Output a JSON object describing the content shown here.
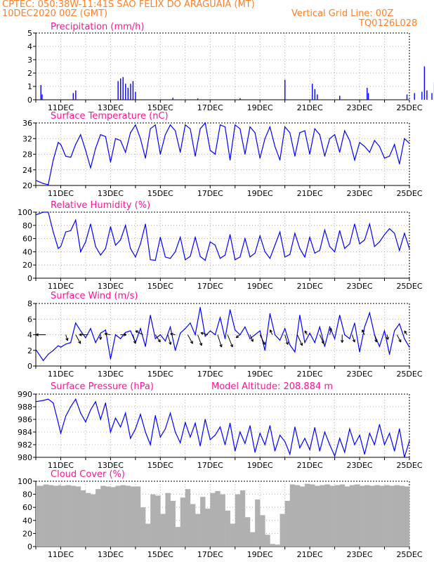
{
  "header": {
    "station": "CPTEC:   050:38W-11:41S   SAO FELIX DO ARAGUAIA (MT)",
    "init": "10DEC2020 00Z (GMT)",
    "grid_note": "Vertical Grid Line: 00Z",
    "code": "TQ0126L028"
  },
  "colors": {
    "header": "#ff7f24",
    "title": "#ff1493",
    "line": "#0000ff",
    "cloud": "#b0b0b0",
    "arrow": "#000000"
  },
  "chart_data": [
    {
      "type": "bar",
      "title": "Precipitation (mm/h)",
      "ylim": [
        0,
        5
      ],
      "yticks": [
        0,
        1,
        2,
        3,
        4,
        5
      ],
      "xlabels": [
        "11DEC",
        "13DEC",
        "15DEC",
        "17DEC",
        "19DEC",
        "21DEC",
        "23DEC",
        "25DEC"
      ],
      "grid": true,
      "bars": [
        [
          0.2,
          1.1
        ],
        [
          0.25,
          0.4
        ],
        [
          1.5,
          0.5
        ],
        [
          1.6,
          0.7
        ],
        [
          3.3,
          1.4
        ],
        [
          3.4,
          1.6
        ],
        [
          3.5,
          1.7
        ],
        [
          3.6,
          1.2
        ],
        [
          3.7,
          0.9
        ],
        [
          3.8,
          1.2
        ],
        [
          3.9,
          1.4
        ],
        [
          4.0,
          0.6
        ],
        [
          5.5,
          0.15
        ],
        [
          6.5,
          0.1
        ],
        [
          8.2,
          0.12
        ],
        [
          10.0,
          1.5
        ],
        [
          11.1,
          1.2
        ],
        [
          11.2,
          0.8
        ],
        [
          11.3,
          0.4
        ],
        [
          12.2,
          0.3
        ],
        [
          13.3,
          0.9
        ],
        [
          13.35,
          0.5
        ],
        [
          14.9,
          0.4
        ],
        [
          15.2,
          0.5
        ],
        [
          15.5,
          0.6
        ],
        [
          15.6,
          2.5
        ],
        [
          15.7,
          0.7
        ],
        [
          15.9,
          0.5
        ],
        [
          16.0,
          1.3
        ],
        [
          16.8,
          0.8
        ],
        [
          16.9,
          2.6
        ],
        [
          17.0,
          2.0
        ],
        [
          17.1,
          1.2
        ],
        [
          17.3,
          2.1
        ],
        [
          17.4,
          2.0
        ],
        [
          17.5,
          2.1
        ],
        [
          17.6,
          1.5
        ],
        [
          17.7,
          2.1
        ]
      ]
    },
    {
      "type": "line",
      "title": "Surface Temperature (nC)",
      "ylim": [
        20,
        36
      ],
      "yticks": [
        20,
        24,
        28,
        32,
        36
      ],
      "xlabels": [
        "11DEC",
        "13DEC",
        "15DEC",
        "17DEC",
        "19DEC",
        "21DEC",
        "23DEC",
        "25DEC"
      ],
      "grid": true,
      "x": [
        0.0,
        0.3,
        0.5,
        0.7,
        0.9,
        1.0,
        1.2,
        1.4,
        1.6,
        1.8,
        2.0,
        2.2,
        2.4,
        2.6,
        2.8,
        3.0,
        3.2,
        3.4,
        3.6,
        3.8,
        4.0,
        4.2,
        4.4,
        4.6,
        4.8,
        5.0,
        5.2,
        5.4,
        5.6,
        5.8,
        6.0,
        6.2,
        6.4,
        6.6,
        6.8,
        7.0,
        7.2,
        7.4,
        7.6,
        7.8,
        8.0,
        8.2,
        8.4,
        8.6,
        8.8,
        9.0,
        9.2,
        9.4,
        9.6,
        9.8,
        10.0,
        10.2,
        10.4,
        10.6,
        10.8,
        11.0,
        11.2,
        11.4,
        11.6,
        11.8,
        12.0,
        12.2,
        12.4,
        12.6,
        12.8,
        13.0,
        13.2,
        13.4,
        13.6,
        13.8,
        14.0,
        14.2,
        14.4,
        14.6,
        14.8,
        15.0
      ],
      "values": [
        21.3,
        20.5,
        20.2,
        26.5,
        31.0,
        30.5,
        27.5,
        27.2,
        30.5,
        33.0,
        29.0,
        24.5,
        29.5,
        33.0,
        32.5,
        26.0,
        32.0,
        31.5,
        28.5,
        33.5,
        35.5,
        32.0,
        27.0,
        34.5,
        35.5,
        28.0,
        33.0,
        35.5,
        34.0,
        28.5,
        35.5,
        34.5,
        27.5,
        34.5,
        36.0,
        29.0,
        28.0,
        35.5,
        35.0,
        26.5,
        35.5,
        34.5,
        28.0,
        35.0,
        33.5,
        27.0,
        32.0,
        35.0,
        30.0,
        26.5,
        35.0,
        33.5,
        27.5,
        33.5,
        34.0,
        28.0,
        34.5,
        33.0,
        27.5,
        32.0,
        33.0,
        28.5,
        34.0,
        31.5,
        26.5,
        31.0,
        30.0,
        28.5,
        31.5,
        30.0,
        27.0,
        27.5,
        30.5,
        25.5,
        32.0,
        30.8
      ]
    },
    {
      "type": "line",
      "title": "Relative Humidity (%)",
      "ylim": [
        0,
        100
      ],
      "yticks": [
        0,
        20,
        40,
        60,
        80,
        100
      ],
      "xlabels": [
        "11DEC",
        "13DEC",
        "15DEC",
        "17DEC",
        "19DEC",
        "21DEC",
        "23DEC",
        "25DEC"
      ],
      "grid": true,
      "x": [
        0.0,
        0.3,
        0.5,
        0.7,
        0.9,
        1.0,
        1.2,
        1.4,
        1.6,
        1.8,
        2.0,
        2.2,
        2.4,
        2.6,
        2.8,
        3.0,
        3.2,
        3.4,
        3.6,
        3.8,
        4.0,
        4.2,
        4.4,
        4.6,
        4.8,
        5.0,
        5.2,
        5.4,
        5.6,
        5.8,
        6.0,
        6.2,
        6.4,
        6.6,
        6.8,
        7.0,
        7.2,
        7.4,
        7.6,
        7.8,
        8.0,
        8.2,
        8.4,
        8.6,
        8.8,
        9.0,
        9.2,
        9.4,
        9.6,
        9.8,
        10.0,
        10.2,
        10.4,
        10.6,
        10.8,
        11.0,
        11.2,
        11.4,
        11.6,
        11.8,
        12.0,
        12.2,
        12.4,
        12.6,
        12.8,
        13.0,
        13.2,
        13.4,
        13.6,
        13.8,
        14.0,
        14.2,
        14.4,
        14.6,
        14.8,
        15.0
      ],
      "values": [
        96,
        100,
        100,
        70,
        45,
        48,
        70,
        72,
        88,
        40,
        55,
        82,
        48,
        35,
        45,
        78,
        50,
        58,
        80,
        45,
        32,
        52,
        82,
        28,
        27,
        62,
        32,
        30,
        40,
        62,
        28,
        33,
        62,
        33,
        27,
        55,
        50,
        30,
        35,
        66,
        28,
        32,
        60,
        32,
        38,
        64,
        40,
        30,
        50,
        70,
        32,
        36,
        68,
        45,
        32,
        62,
        38,
        42,
        73,
        48,
        40,
        72,
        45,
        52,
        82,
        52,
        58,
        82,
        48,
        55,
        66,
        75,
        68,
        42,
        68,
        45
      ]
    },
    {
      "type": "line",
      "title": "Surface Wind (m/s)",
      "ylim": [
        0,
        8
      ],
      "yticks": [
        0,
        2,
        4,
        6,
        8
      ],
      "xlabels": [
        "11DEC",
        "13DEC",
        "15DEC",
        "17DEC",
        "19DEC",
        "21DEC",
        "23DEC",
        "25DEC"
      ],
      "grid": true,
      "x": [
        0.0,
        0.3,
        0.5,
        0.7,
        0.9,
        1.0,
        1.2,
        1.4,
        1.6,
        1.8,
        2.0,
        2.2,
        2.4,
        2.6,
        2.8,
        3.0,
        3.2,
        3.4,
        3.6,
        3.8,
        4.0,
        4.2,
        4.4,
        4.6,
        4.8,
        5.0,
        5.2,
        5.4,
        5.6,
        5.8,
        6.0,
        6.2,
        6.4,
        6.6,
        6.8,
        7.0,
        7.2,
        7.4,
        7.6,
        7.8,
        8.0,
        8.2,
        8.4,
        8.6,
        8.8,
        9.0,
        9.2,
        9.4,
        9.6,
        9.8,
        10.0,
        10.2,
        10.4,
        10.6,
        10.8,
        11.0,
        11.2,
        11.4,
        11.6,
        11.8,
        12.0,
        12.2,
        12.4,
        12.6,
        12.8,
        13.0,
        13.2,
        13.4,
        13.6,
        13.8,
        14.0,
        14.2,
        14.4,
        14.6,
        14.8,
        15.0
      ],
      "values": [
        2.1,
        0.7,
        1.5,
        2.0,
        2.6,
        2.4,
        2.8,
        3.0,
        5.5,
        4.5,
        3.6,
        4.8,
        3.0,
        4.2,
        4.6,
        0.9,
        4.0,
        3.5,
        4.3,
        4.5,
        3.0,
        4.8,
        2.5,
        6.5,
        3.5,
        4.0,
        3.2,
        5.0,
        2.0,
        4.2,
        4.8,
        5.5,
        4.0,
        7.5,
        3.8,
        4.5,
        4.0,
        6.2,
        3.5,
        7.2,
        4.6,
        4.0,
        5.0,
        3.5,
        4.0,
        4.5,
        2.0,
        6.7,
        4.0,
        3.3,
        4.8,
        2.7,
        1.8,
        6.5,
        3.0,
        4.2,
        3.0,
        5.0,
        2.5,
        5.0,
        3.5,
        6.5,
        4.0,
        3.5,
        5.5,
        1.8,
        5.0,
        6.8,
        4.0,
        2.5,
        4.5,
        1.5,
        4.5,
        5.4,
        3.5,
        2.4
      ]
    },
    {
      "type": "line",
      "title": "Surface Pressure (hPa)",
      "subtitle": "Model Altitude: 208.884 m",
      "ylim": [
        980,
        990
      ],
      "yticks": [
        980,
        982,
        984,
        986,
        988,
        990
      ],
      "xlabels": [
        "11DEC",
        "13DEC",
        "15DEC",
        "17DEC",
        "19DEC",
        "21DEC",
        "23DEC",
        "25DEC"
      ],
      "grid": true,
      "x": [
        0.0,
        0.3,
        0.5,
        0.7,
        0.9,
        1.0,
        1.2,
        1.4,
        1.6,
        1.8,
        2.0,
        2.2,
        2.4,
        2.6,
        2.8,
        3.0,
        3.2,
        3.4,
        3.6,
        3.8,
        4.0,
        4.2,
        4.4,
        4.6,
        4.8,
        5.0,
        5.2,
        5.4,
        5.6,
        5.8,
        6.0,
        6.2,
        6.4,
        6.6,
        6.8,
        7.0,
        7.2,
        7.4,
        7.6,
        7.8,
        8.0,
        8.2,
        8.4,
        8.6,
        8.8,
        9.0,
        9.2,
        9.4,
        9.6,
        9.8,
        10.0,
        10.2,
        10.4,
        10.6,
        10.8,
        11.0,
        11.2,
        11.4,
        11.6,
        11.8,
        12.0,
        12.2,
        12.4,
        12.6,
        12.8,
        13.0,
        13.2,
        13.4,
        13.6,
        13.8,
        14.0,
        14.2,
        14.4,
        14.6,
        14.8,
        15.0
      ],
      "values": [
        988.8,
        989.0,
        989.2,
        988.6,
        985.5,
        983.8,
        986.5,
        988.0,
        989.2,
        987.0,
        985.6,
        987.5,
        988.8,
        986.0,
        988.6,
        984.0,
        986.2,
        984.8,
        987.0,
        983.0,
        984.5,
        986.8,
        984.0,
        982.0,
        986.6,
        983.2,
        984.5,
        987.0,
        984.0,
        982.3,
        985.5,
        983.2,
        985.4,
        981.8,
        986.0,
        982.8,
        983.5,
        984.8,
        982.0,
        985.4,
        981.0,
        984.0,
        982.2,
        985.0,
        980.8,
        983.8,
        982.0,
        985.0,
        981.0,
        983.5,
        982.5,
        980.5,
        984.8,
        981.5,
        983.0,
        981.2,
        984.7,
        981.0,
        984.0,
        982.0,
        980.2,
        983.0,
        980.8,
        984.5,
        982.0,
        983.5,
        980.5,
        983.8,
        982.0,
        985.2,
        982.0,
        983.8,
        981.0,
        984.5,
        980.0,
        982.6
      ]
    },
    {
      "type": "bar",
      "title": "Cloud Cover (%)",
      "ylim": [
        0,
        100
      ],
      "yticks": [
        0,
        20,
        40,
        60,
        80,
        100
      ],
      "xlabels": [
        "11DEC",
        "13DEC",
        "15DEC",
        "17DEC",
        "19DEC",
        "21DEC",
        "23DEC",
        "25DEC"
      ],
      "grid": true,
      "x": [
        0.0,
        0.3,
        0.5,
        0.7,
        0.9,
        1.0,
        1.2,
        1.4,
        1.6,
        1.8,
        2.0,
        2.2,
        2.4,
        2.6,
        2.8,
        3.0,
        3.2,
        3.4,
        3.6,
        3.8,
        4.0,
        4.2,
        4.4,
        4.6,
        4.8,
        5.0,
        5.2,
        5.4,
        5.6,
        5.8,
        6.0,
        6.2,
        6.4,
        6.6,
        6.8,
        7.0,
        7.2,
        7.4,
        7.6,
        7.8,
        8.0,
        8.2,
        8.4,
        8.6,
        8.8,
        9.0,
        9.2,
        9.4,
        9.6,
        9.8,
        10.0,
        10.2,
        10.4,
        10.6,
        10.8,
        11.0,
        11.2,
        11.4,
        11.6,
        11.8,
        12.0,
        12.2,
        12.4,
        12.6,
        12.8,
        13.0,
        13.2,
        13.4,
        13.6,
        13.8,
        14.0,
        14.2,
        14.4,
        14.6,
        14.8,
        15.0
      ],
      "values": [
        93,
        95,
        94,
        93,
        94,
        93,
        94,
        93,
        92,
        86,
        82,
        80,
        88,
        93,
        92,
        91,
        93,
        94,
        93,
        92,
        92,
        60,
        35,
        80,
        78,
        50,
        82,
        70,
        30,
        75,
        88,
        65,
        50,
        76,
        58,
        82,
        85,
        80,
        55,
        35,
        80,
        86,
        45,
        22,
        72,
        48,
        18,
        4,
        3,
        50,
        70,
        95,
        94,
        92,
        96,
        95,
        93,
        94,
        95,
        93,
        94,
        95,
        92,
        94,
        95,
        93,
        94,
        93,
        94,
        93,
        94,
        93,
        94,
        93,
        92,
        86
      ]
    },
    {
      "type": "scatter",
      "title": "Surface Wind direction",
      "arrows_uv": [
        [
          0.4,
          -2.0,
          0.0
        ],
        [
          1.2,
          0.4,
          -1.2
        ],
        [
          1.6,
          1.0,
          -1.8
        ],
        [
          2.1,
          -1.8,
          0.0
        ],
        [
          2.6,
          0.0,
          -1.0
        ],
        [
          3.0,
          -1.2,
          0.2
        ],
        [
          3.4,
          1.2,
          0.0
        ],
        [
          3.9,
          0.5,
          -1.8
        ],
        [
          4.3,
          -1.5,
          0.8
        ],
        [
          4.8,
          1.0,
          -1.5
        ],
        [
          5.3,
          0.6,
          -2.0
        ],
        [
          5.6,
          -1.0,
          0.2
        ],
        [
          6.1,
          1.0,
          -1.8
        ],
        [
          6.5,
          0.8,
          -2.2
        ],
        [
          6.9,
          -1.4,
          0.4
        ],
        [
          7.3,
          0.8,
          -2.5
        ],
        [
          7.7,
          1.0,
          -2.5
        ],
        [
          8.2,
          -0.8,
          -0.6
        ],
        [
          8.6,
          0.6,
          -1.4
        ],
        [
          9.0,
          1.0,
          -2.0
        ],
        [
          9.5,
          -0.5,
          1.0
        ],
        [
          10.0,
          0.6,
          -2.0
        ],
        [
          10.5,
          1.0,
          -2.2
        ],
        [
          10.9,
          -0.5,
          0.8
        ],
        [
          11.4,
          0.8,
          -1.8
        ],
        [
          11.8,
          0.3,
          1.3
        ],
        [
          12.3,
          0.0,
          -1.6
        ],
        [
          12.7,
          0.5,
          -1.5
        ],
        [
          13.2,
          -0.5,
          1.0
        ],
        [
          13.6,
          0.4,
          -1.5
        ],
        [
          14.1,
          0.2,
          -1.0
        ],
        [
          14.5,
          0.8,
          -1.5
        ],
        [
          14.9,
          -0.5,
          0.8
        ]
      ]
    }
  ]
}
